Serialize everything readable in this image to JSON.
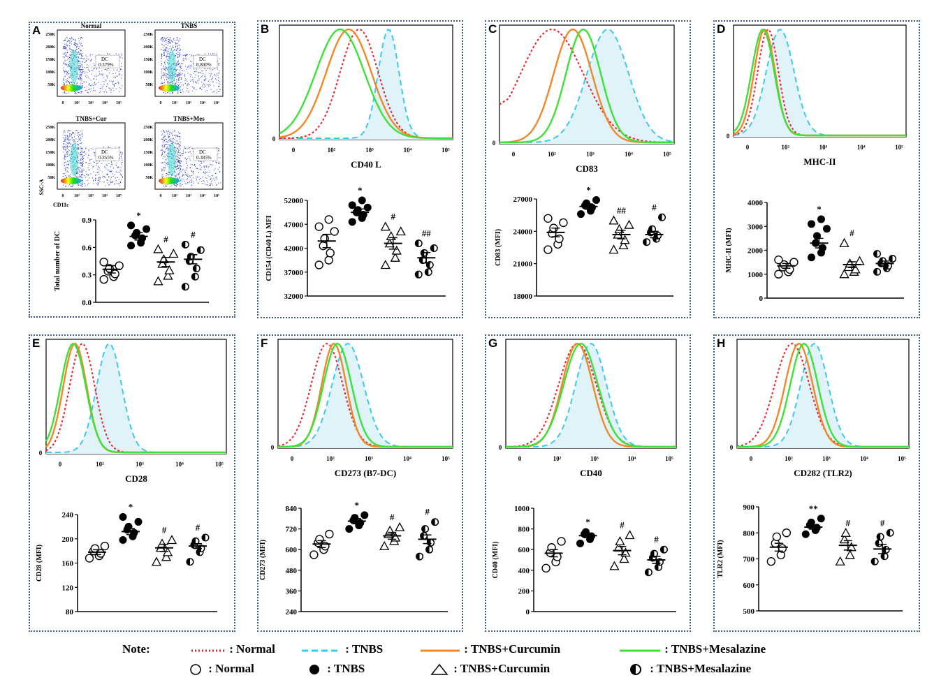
{
  "panels": [
    {
      "id": "A",
      "label": "A",
      "xlabel": "",
      "ylabel": "Total number of DC",
      "ylim": [
        0,
        0.9
      ],
      "yticks": [
        "0.0",
        "0.3",
        "0.6",
        "0.9"
      ],
      "groups": [
        {
          "mean": 0.36,
          "sem": 0.04,
          "points": [
            0.25,
            0.28,
            0.31,
            0.34,
            0.37,
            0.4,
            0.44
          ]
        },
        {
          "mean": 0.72,
          "sem": 0.04,
          "mark": "*",
          "points": [
            0.62,
            0.65,
            0.7,
            0.73,
            0.76,
            0.8,
            0.84
          ]
        },
        {
          "mean": 0.44,
          "sem": 0.05,
          "mark": "#",
          "points": [
            0.23,
            0.29,
            0.35,
            0.42,
            0.47,
            0.53,
            0.58
          ]
        },
        {
          "mean": 0.47,
          "sem": 0.05,
          "mark": "#",
          "points": [
            0.17,
            0.28,
            0.37,
            0.45,
            0.5,
            0.57,
            0.63
          ]
        }
      ]
    },
    {
      "id": "B",
      "label": "B",
      "xlabel": "CD40 L",
      "ylabel": "CD154 (CD40 L) MFI",
      "ylim": [
        32000,
        52000
      ],
      "yticks": [
        "32000",
        "37000",
        "42000",
        "47000",
        "52000"
      ],
      "groups": [
        {
          "mean": 43500,
          "sem": 1400,
          "points": [
            38500,
            39500,
            41000,
            42500,
            44000,
            45500,
            46500,
            48000
          ]
        },
        {
          "mean": 49500,
          "sem": 700,
          "mark": "*",
          "points": [
            47500,
            48300,
            49000,
            49500,
            50000,
            50500,
            51000,
            52000
          ]
        },
        {
          "mean": 43000,
          "sem": 1200,
          "mark": "#",
          "points": [
            38500,
            40000,
            41500,
            43000,
            44500,
            45500,
            46500
          ]
        },
        {
          "mean": 40000,
          "sem": 1100,
          "mark": "##",
          "points": [
            36500,
            37000,
            38500,
            39500,
            41000,
            42000,
            43000
          ]
        }
      ]
    },
    {
      "id": "C",
      "label": "C",
      "xlabel": "CD83",
      "ylabel": "CD83 (MFI)",
      "ylim": [
        18000,
        27000
      ],
      "yticks": [
        "18000",
        "21000",
        "24000",
        "27000"
      ],
      "groups": [
        {
          "mean": 23900,
          "sem": 400,
          "points": [
            22300,
            22800,
            23300,
            23800,
            24300,
            24800,
            25200
          ]
        },
        {
          "mean": 26300,
          "sem": 250,
          "mark": "*",
          "points": [
            25600,
            25900,
            26200,
            26400,
            26600,
            26900
          ]
        },
        {
          "mean": 23700,
          "sem": 400,
          "mark": "##",
          "points": [
            22300,
            22700,
            23200,
            23700,
            24200,
            24600,
            25000
          ]
        },
        {
          "mean": 23700,
          "sem": 300,
          "mark": "#",
          "points": [
            23000,
            23300,
            23600,
            23900,
            24200,
            25300
          ]
        }
      ]
    },
    {
      "id": "D",
      "label": "D",
      "xlabel": "MHC-II",
      "ylabel": "MHC-II (MFI)",
      "ylim": [
        0,
        4000
      ],
      "yticks": [
        "0",
        "1000",
        "2000",
        "3000",
        "4000"
      ],
      "groups": [
        {
          "mean": 1350,
          "sem": 100,
          "points": [
            1000,
            1100,
            1200,
            1300,
            1400,
            1500,
            1600
          ]
        },
        {
          "mean": 2300,
          "sem": 200,
          "mark": "*",
          "points": [
            1700,
            1900,
            2100,
            2300,
            2600,
            2900,
            3100,
            3300
          ]
        },
        {
          "mean": 1400,
          "sem": 120,
          "mark": "#",
          "points": [
            1000,
            1100,
            1200,
            1300,
            1450,
            1550,
            2300
          ]
        },
        {
          "mean": 1450,
          "sem": 100,
          "points": [
            1100,
            1250,
            1350,
            1450,
            1550,
            1650,
            1850
          ]
        }
      ]
    },
    {
      "id": "E",
      "label": "E",
      "xlabel": "CD28",
      "ylabel": "CD28 (MFI)",
      "ylim": [
        80,
        240
      ],
      "yticks": [
        "80",
        "120",
        "160",
        "200",
        "240"
      ],
      "groups": [
        {
          "mean": 178,
          "sem": 4,
          "points": [
            168,
            172,
            176,
            180,
            184,
            188
          ]
        },
        {
          "mean": 212,
          "sem": 5,
          "mark": "*",
          "points": [
            198,
            204,
            210,
            215,
            220,
            228,
            236
          ]
        },
        {
          "mean": 185,
          "sem": 6,
          "mark": "#",
          "points": [
            162,
            170,
            178,
            185,
            192,
            198
          ]
        },
        {
          "mean": 188,
          "sem": 4,
          "mark": "#",
          "points": [
            162,
            178,
            184,
            190,
            196,
            202
          ]
        }
      ]
    },
    {
      "id": "F",
      "label": "F",
      "xlabel": "CD273 (B7-DC)",
      "ylabel": "CD273 (MFI)",
      "ylim": [
        240,
        840
      ],
      "yticks": [
        "240",
        "360",
        "480",
        "600",
        "720",
        "840"
      ],
      "groups": [
        {
          "mean": 632,
          "sem": 20,
          "points": [
            570,
            600,
            620,
            640,
            660,
            690
          ]
        },
        {
          "mean": 765,
          "sem": 15,
          "mark": "*",
          "points": [
            720,
            740,
            755,
            770,
            785,
            800
          ]
        },
        {
          "mean": 680,
          "sem": 20,
          "mark": "#",
          "points": [
            620,
            650,
            670,
            690,
            710,
            730
          ]
        },
        {
          "mean": 660,
          "sem": 25,
          "mark": "#",
          "points": [
            560,
            600,
            640,
            680,
            720,
            760
          ]
        }
      ]
    },
    {
      "id": "G",
      "label": "G",
      "xlabel": "CD40",
      "ylabel": "CD40 (MFI)",
      "ylim": [
        0,
        1000
      ],
      "yticks": [
        "0",
        "200",
        "400",
        "600",
        "800",
        "1000"
      ],
      "groups": [
        {
          "mean": 565,
          "sem": 35,
          "points": [
            420,
            480,
            530,
            570,
            620,
            680
          ]
        },
        {
          "mean": 735,
          "sem": 20,
          "mark": "*",
          "points": [
            660,
            700,
            730,
            750,
            770
          ]
        },
        {
          "mean": 590,
          "sem": 40,
          "mark": "#",
          "points": [
            440,
            510,
            570,
            620,
            680,
            740
          ]
        },
        {
          "mean": 500,
          "sem": 35,
          "mark": "#",
          "points": [
            380,
            430,
            480,
            520,
            560,
            600
          ]
        }
      ]
    },
    {
      "id": "H",
      "label": "H",
      "xlabel": "CD282 (TLR2)",
      "ylabel": "TLR2 (MFI)",
      "ylim": [
        500,
        900
      ],
      "yticks": [
        "500",
        "600",
        "700",
        "800",
        "900"
      ],
      "groups": [
        {
          "mean": 745,
          "sem": 15,
          "points": [
            690,
            715,
            740,
            760,
            785,
            800
          ]
        },
        {
          "mean": 822,
          "sem": 8,
          "mark": "**",
          "points": [
            795,
            810,
            820,
            830,
            840,
            855
          ]
        },
        {
          "mean": 752,
          "sem": 18,
          "mark": "#",
          "points": [
            690,
            715,
            745,
            775,
            800
          ]
        },
        {
          "mean": 738,
          "sem": 18,
          "mark": "#",
          "points": [
            690,
            710,
            735,
            760,
            785,
            800
          ]
        }
      ]
    }
  ],
  "flow_plots": [
    {
      "title": "Normal",
      "dc": "DC\n0.379%"
    },
    {
      "title": "TNBS",
      "dc": "DC\n0.800%"
    },
    {
      "title": "TNBS+Cur",
      "dc": "DC\n0.355%"
    },
    {
      "title": "TNBS+Mes",
      "dc": "DC\n0.385%"
    }
  ],
  "flow_axis": {
    "x": "CD11c",
    "y": "SSC-A",
    "yticks": [
      "250K",
      "200K",
      "150K",
      "100K",
      "50K"
    ],
    "xticks": [
      "0",
      "10²",
      "10³",
      "10⁴",
      "10⁵"
    ]
  },
  "hist_xticks": [
    "0",
    "10²",
    "10³",
    "10⁴",
    "10⁵"
  ],
  "hist_y0": "0",
  "legend": {
    "note": "Note:",
    "lines": [
      {
        "label": ": Normal",
        "color": "#e8202a",
        "style": "dotted"
      },
      {
        "label": ": TNBS",
        "color": "#3cc8f0",
        "style": "dashed"
      },
      {
        "label": ": TNBS+Curcumin",
        "color": "#f0882a",
        "style": "solid"
      },
      {
        "label": ": TNBS+Mesalazine",
        "color": "#3ee03a",
        "style": "solid"
      }
    ],
    "markers": [
      {
        "label": ": Normal",
        "shape": "open-circle"
      },
      {
        "label": ": TNBS",
        "shape": "filled-circle"
      },
      {
        "label": ": TNBS+Curcumin",
        "shape": "open-triangle"
      },
      {
        "label": ": TNBS+Mesalazine",
        "shape": "half-circle"
      }
    ]
  },
  "colors": {
    "normal": "#e8202a",
    "tnbs": "#3cc8f0",
    "curcumin": "#f0882a",
    "mesalazine": "#3ee03a",
    "fill": "#dff3f9",
    "frame": "#3b5a8c"
  }
}
